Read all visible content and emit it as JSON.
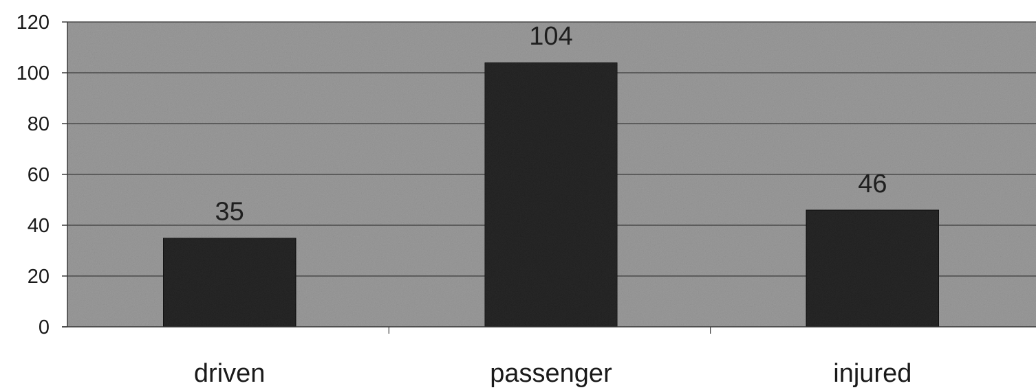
{
  "chart_data": {
    "type": "bar",
    "categories": [
      "driven",
      "passenger",
      "injured"
    ],
    "values": [
      35,
      104,
      46
    ],
    "data_labels": [
      "35",
      "104",
      "46"
    ],
    "title": "",
    "xlabel": "",
    "ylabel": "",
    "ylim": [
      0,
      120
    ],
    "yticks": [
      0,
      20,
      40,
      60,
      80,
      100,
      120
    ],
    "grid": true,
    "legend": "none"
  },
  "colors": {
    "plot_background": "#9b9b9b",
    "bar_fill": "#262626",
    "gridline": "#4a4a4a",
    "axis": "#3a3a3a"
  }
}
